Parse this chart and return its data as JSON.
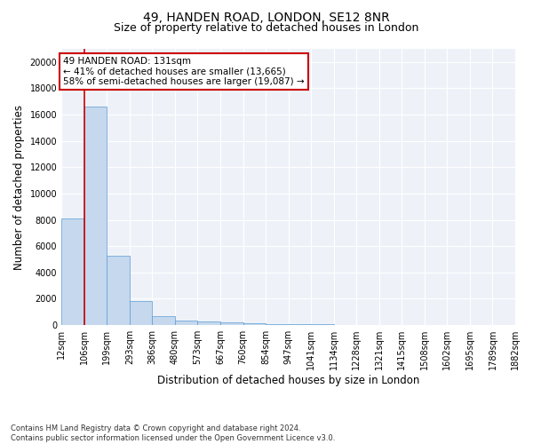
{
  "title1": "49, HANDEN ROAD, LONDON, SE12 8NR",
  "title2": "Size of property relative to detached houses in London",
  "xlabel": "Distribution of detached houses by size in London",
  "ylabel": "Number of detached properties",
  "bar_color": "#c5d8ed",
  "bar_edge_color": "#5b9bd5",
  "bar_heights": [
    8100,
    16600,
    5300,
    1850,
    650,
    370,
    270,
    200,
    150,
    100,
    60,
    40,
    25,
    15,
    10,
    8,
    5,
    4,
    3,
    2
  ],
  "bar_labels": [
    "12sqm",
    "106sqm",
    "199sqm",
    "293sqm",
    "386sqm",
    "480sqm",
    "573sqm",
    "667sqm",
    "760sqm",
    "854sqm",
    "947sqm",
    "1041sqm",
    "1134sqm",
    "1228sqm",
    "1321sqm",
    "1415sqm",
    "1508sqm",
    "1602sqm",
    "1695sqm",
    "1789sqm",
    "1882sqm"
  ],
  "annotation_text": "49 HANDEN ROAD: 131sqm\n← 41% of detached houses are smaller (13,665)\n58% of semi-detached houses are larger (19,087) →",
  "annotation_box_color": "#ffffff",
  "annotation_box_edge": "#cc0000",
  "red_line_x": 1,
  "ylim": [
    0,
    21000
  ],
  "yticks": [
    0,
    2000,
    4000,
    6000,
    8000,
    10000,
    12000,
    14000,
    16000,
    18000,
    20000
  ],
  "footnote": "Contains HM Land Registry data © Crown copyright and database right 2024.\nContains public sector information licensed under the Open Government Licence v3.0.",
  "bg_color": "#eef2f8",
  "grid_color": "#ffffff",
  "title1_fontsize": 10,
  "title2_fontsize": 9,
  "xlabel_fontsize": 8.5,
  "ylabel_fontsize": 8.5,
  "footnote_fontsize": 6.0
}
